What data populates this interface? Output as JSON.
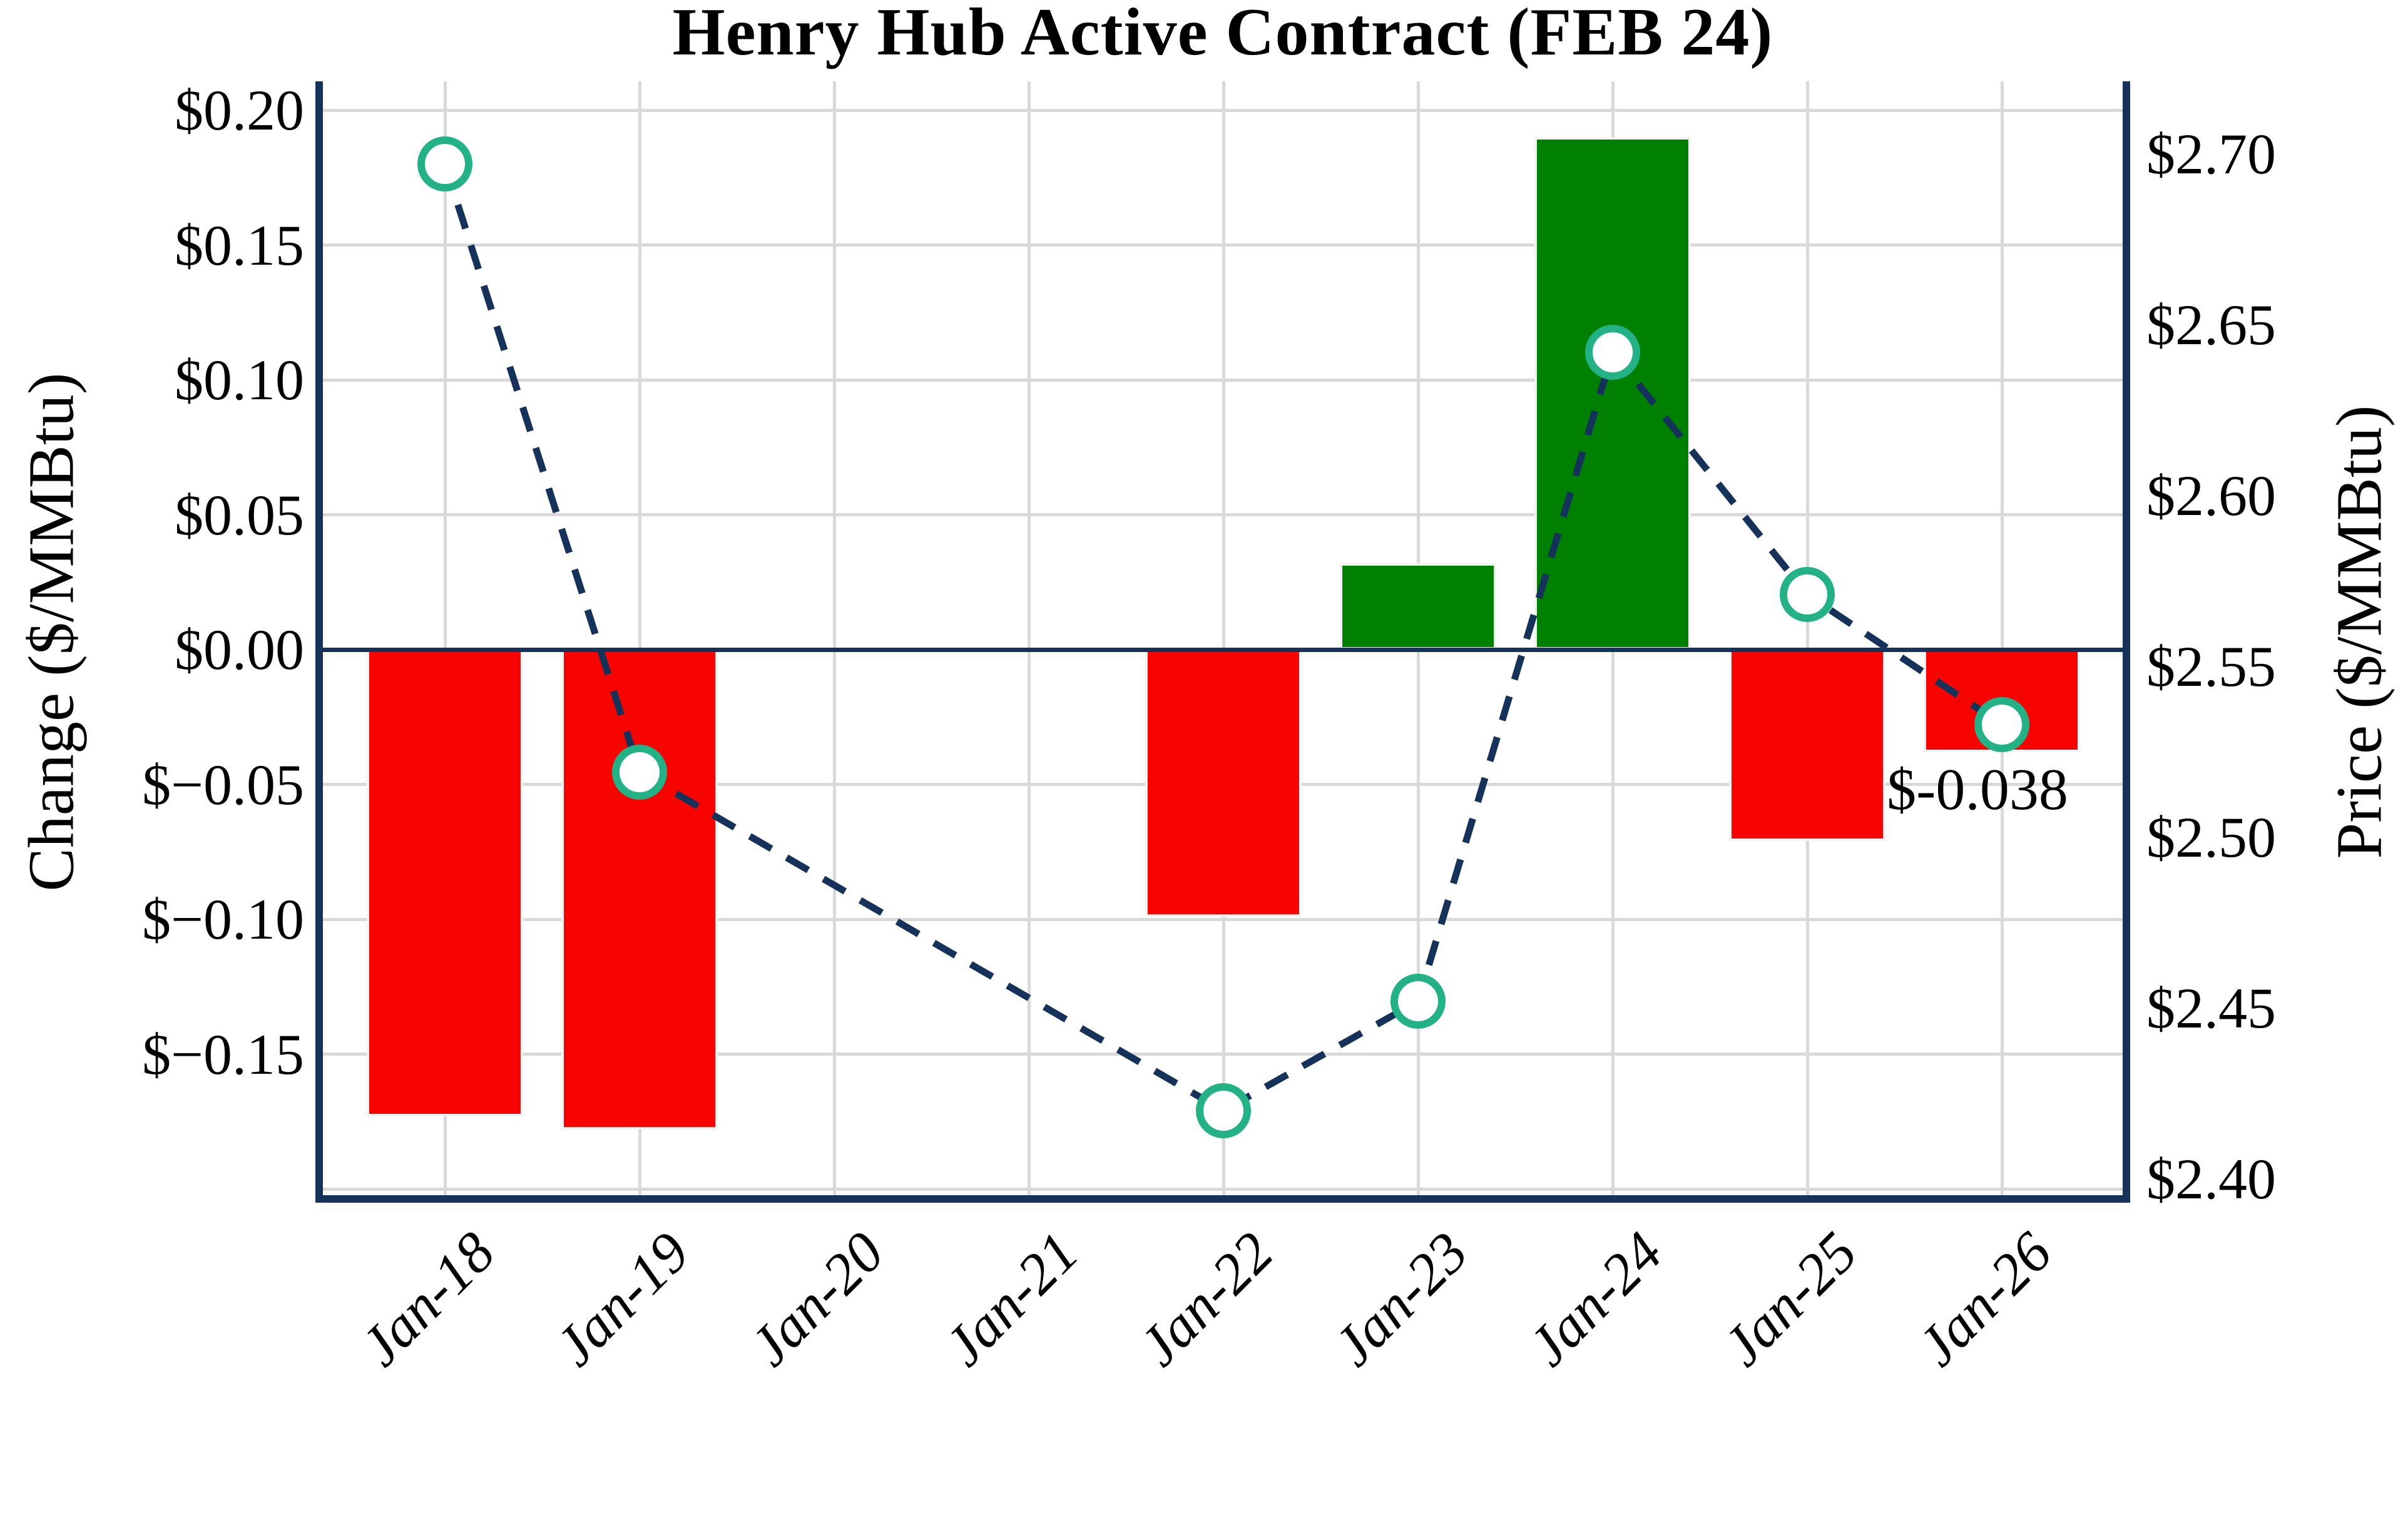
{
  "chart_data": {
    "type": "combo: bar (daily change, left axis) + dashed line with circle markers (price, right axis)",
    "title": "Henry Hub Active Contract (FEB 24)",
    "categories": [
      "Jan-18",
      "Jan-19",
      "Jan-20",
      "Jan-21",
      "Jan-22",
      "Jan-23",
      "Jan-24",
      "Jan-25",
      "Jan-26"
    ],
    "series": [
      {
        "name": "Daily change",
        "type": "bar",
        "axis": "left",
        "values": [
          -0.173,
          -0.178,
          null,
          null,
          -0.099,
          0.032,
          0.19,
          -0.071,
          -0.038
        ]
      },
      {
        "name": "Price",
        "type": "line",
        "axis": "right",
        "line_style": "dashed",
        "marker": "circle",
        "values": [
          2.697,
          2.519,
          null,
          null,
          2.42,
          2.452,
          2.642,
          2.571,
          2.533
        ]
      }
    ],
    "left_axis": {
      "label": "Change ($/MMBtu)",
      "tick_labels": [
        "$0.20",
        "$0.15",
        "$0.10",
        "$0.05",
        "$0.00",
        "$−0.05",
        "$−0.10",
        "$−0.15"
      ],
      "tick_values": [
        0.2,
        0.15,
        0.1,
        0.05,
        0,
        -0.05,
        -0.1,
        -0.15
      ],
      "extra_gridlines": [
        -0.2
      ],
      "range": [
        -0.203,
        0.211
      ]
    },
    "right_axis": {
      "label": "Price ($/MMBtu)",
      "tick_labels": [
        "$2.70",
        "$2.65",
        "$2.60",
        "$2.55",
        "$2.50",
        "$2.45",
        "$2.40"
      ],
      "tick_values": [
        2.7,
        2.65,
        2.6,
        2.55,
        2.5,
        2.45,
        2.4
      ],
      "range": [
        2.395,
        2.721
      ]
    },
    "annotation": {
      "text": "$-0.038",
      "attached_to": "Jan-26"
    },
    "grid": true,
    "legend": "none",
    "colors": {
      "bar_positive": "#008000",
      "bar_negative": "#F80400",
      "line": "#14325A",
      "marker_edge": "#22B286",
      "marker_face": "#FFFFFF",
      "spine": "#14325A",
      "gridline": "#D9D9D9",
      "background": "#FFFFFF",
      "text": "#000000"
    }
  }
}
